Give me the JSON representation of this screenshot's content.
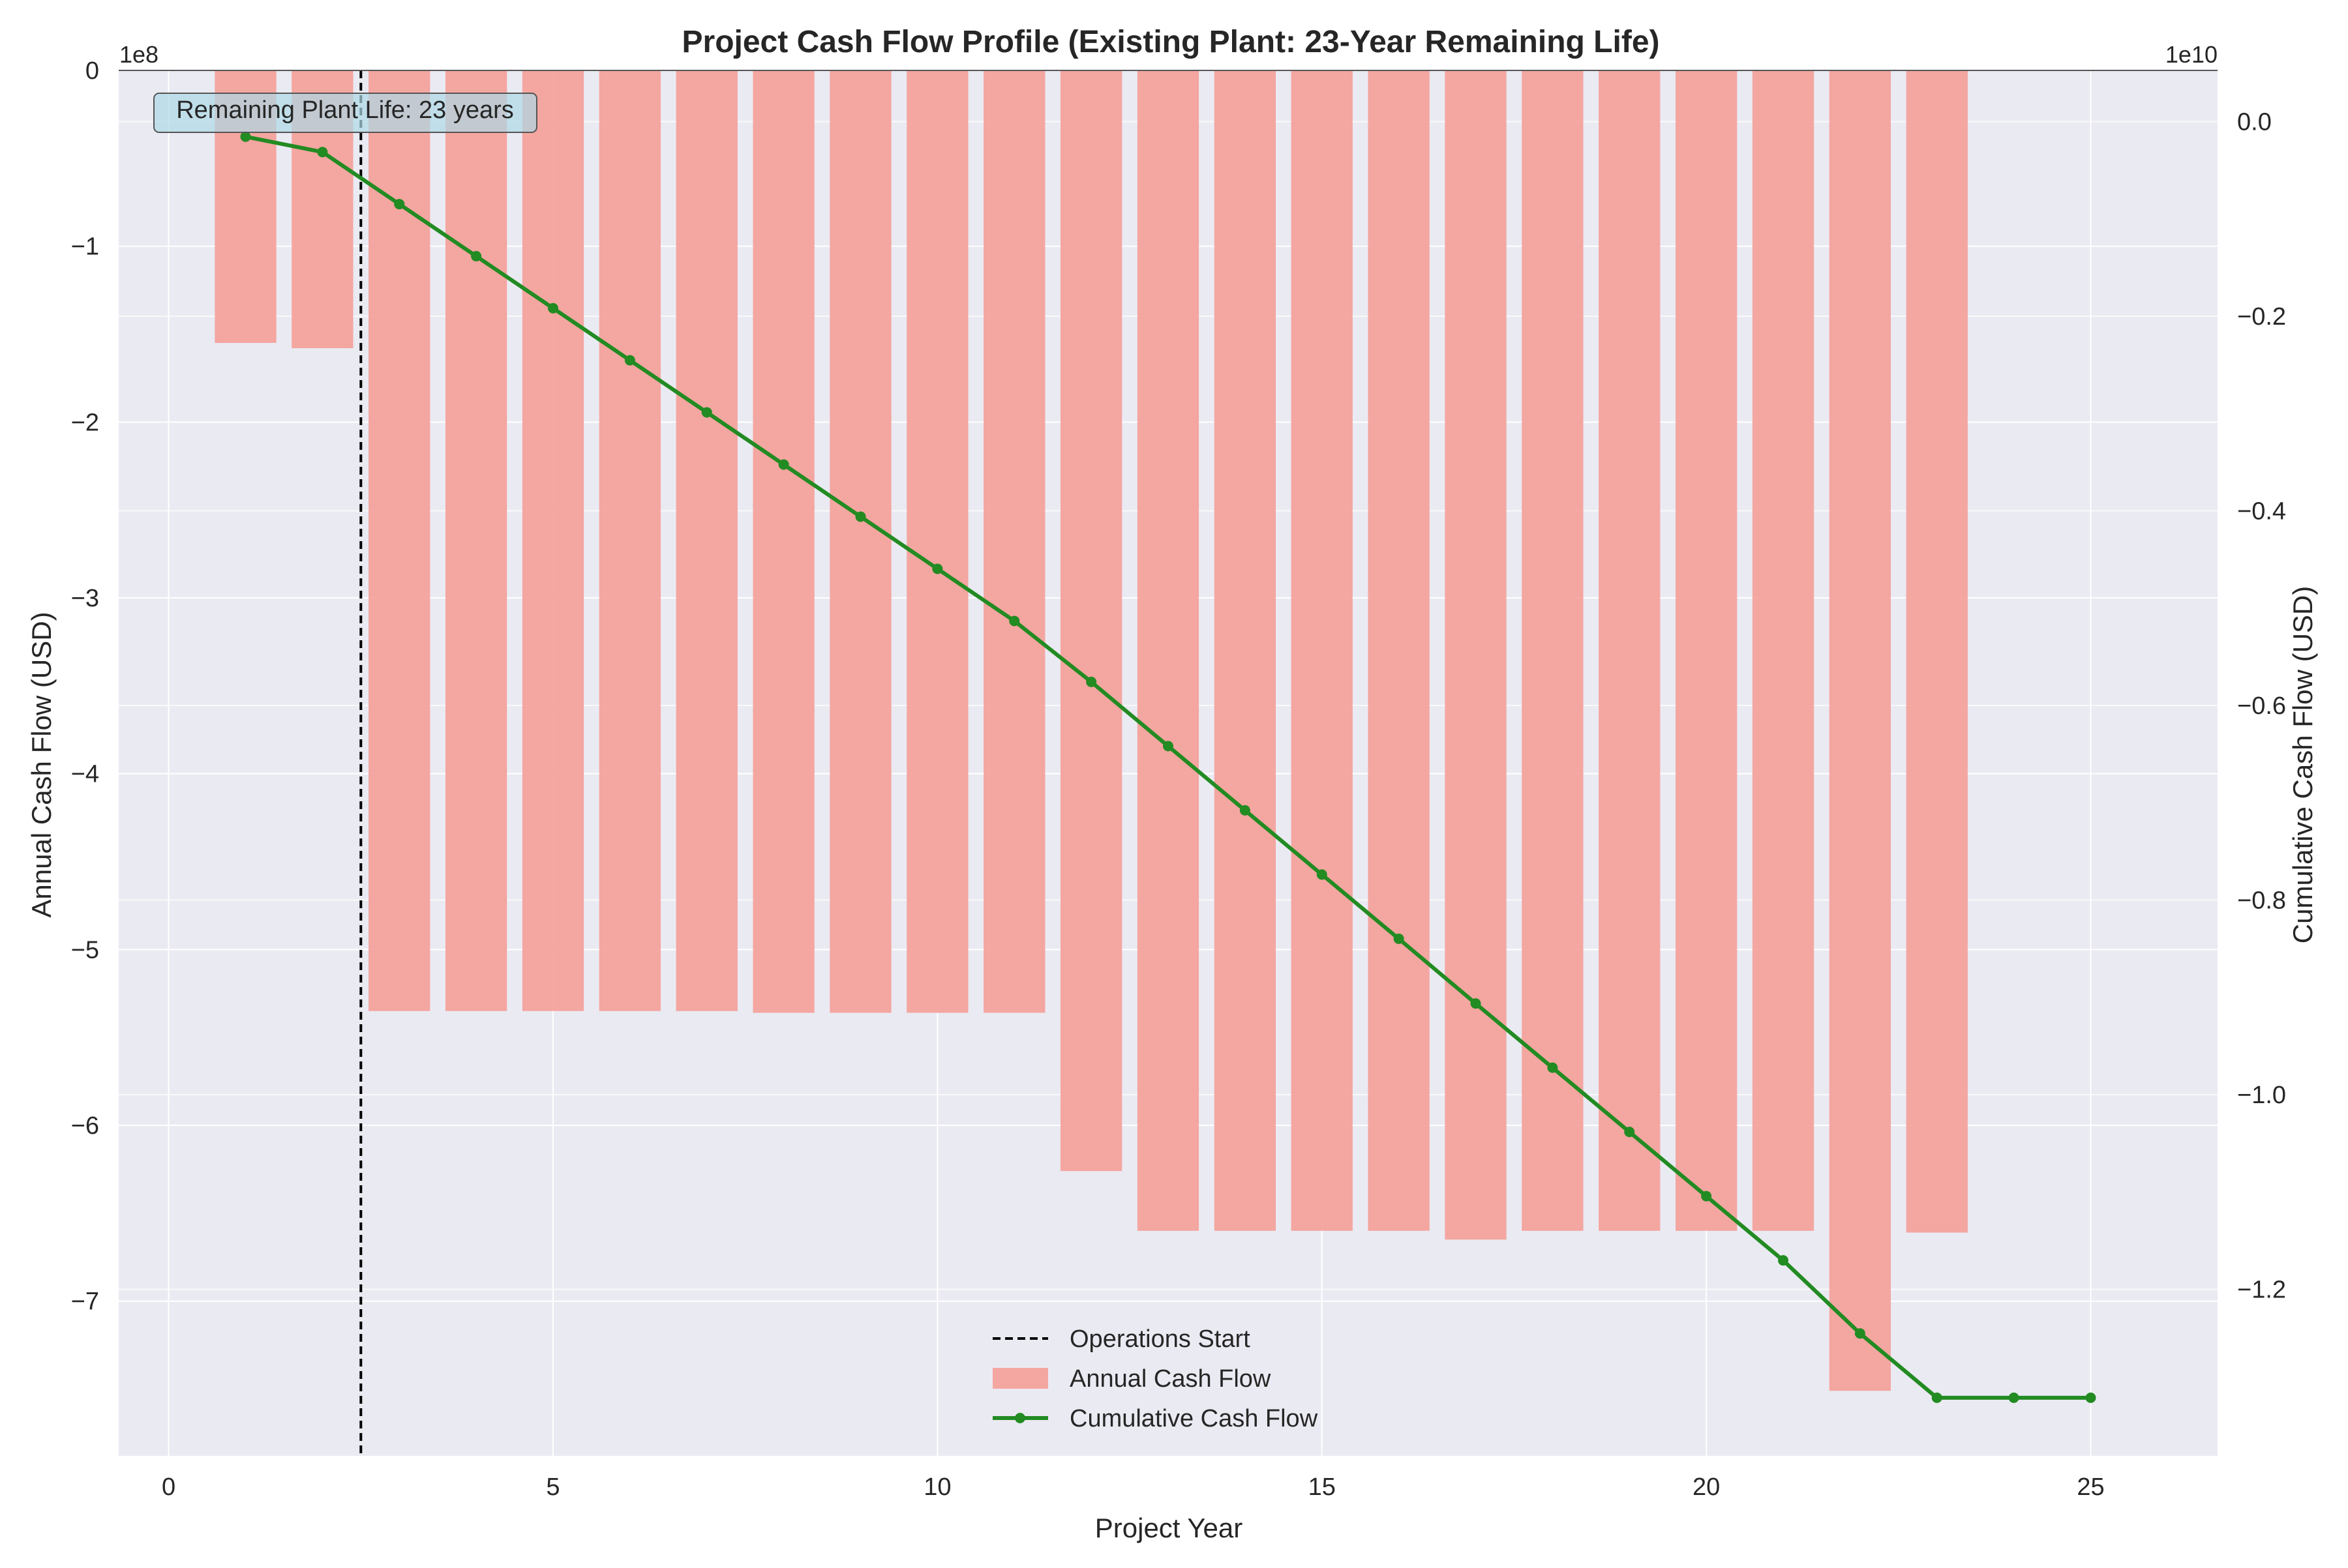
{
  "chart_data": {
    "type": "bar",
    "title": "Project Cash Flow Profile (Existing Plant: 23-Year Remaining Life)",
    "xlabel": "Project Year",
    "ylabel_left": "Annual Cash Flow (USD)",
    "ylabel_right": "Cumulative Cash Flow (USD)",
    "left_scale_label": "1e8",
    "right_scale_label": "1e10",
    "xlim": [
      -0.65,
      26.65
    ],
    "ylim_left": [
      -7.88,
      0
    ],
    "ylim_right": [
      -1.3712,
      0.0526
    ],
    "x_ticks": [
      0,
      5,
      10,
      15,
      20,
      25
    ],
    "x_tick_labels": [
      "0",
      "5",
      "10",
      "15",
      "20",
      "25"
    ],
    "left_ticks": [
      0,
      -1,
      -2,
      -3,
      -4,
      -5,
      -6,
      -7
    ],
    "left_tick_labels": [
      "0",
      "−1",
      "−2",
      "−3",
      "−4",
      "−5",
      "−6",
      "−7"
    ],
    "right_ticks": [
      0.0,
      -0.2,
      -0.4,
      -0.6,
      -0.8,
      -1.0,
      -1.2
    ],
    "right_tick_labels": [
      "0.0",
      "−0.2",
      "−0.4",
      "−0.6",
      "−0.8",
      "−1.0",
      "−1.2"
    ],
    "annual_cash_flow": {
      "name": "Annual Cash Flow",
      "unit_note": "values in units of 1e8 USD",
      "x": [
        1,
        2,
        3,
        4,
        5,
        6,
        7,
        8,
        9,
        10,
        11,
        12,
        13,
        14,
        15,
        16,
        17,
        18,
        19,
        20,
        21,
        22,
        23
      ],
      "values": [
        -1.55,
        -1.58,
        -5.35,
        -5.35,
        -5.35,
        -5.35,
        -5.35,
        -5.36,
        -5.36,
        -5.36,
        -5.36,
        -6.26,
        -6.6,
        -6.6,
        -6.6,
        -6.6,
        -6.65,
        -6.6,
        -6.6,
        -6.6,
        -6.6,
        -7.51,
        -6.61
      ],
      "color": "#f4a09a"
    },
    "cumulative_cash_flow": {
      "name": "Cumulative Cash Flow",
      "unit_note": "values in units of 1e10 USD",
      "x": [
        1,
        2,
        3,
        4,
        5,
        6,
        7,
        8,
        9,
        10,
        11,
        12,
        13,
        14,
        15,
        16,
        17,
        18,
        19,
        20,
        21,
        22,
        23,
        24,
        25
      ],
      "values": [
        -0.0155,
        -0.0313,
        -0.0848,
        -0.1383,
        -0.1918,
        -0.2453,
        -0.2988,
        -0.3524,
        -0.406,
        -0.4596,
        -0.5132,
        -0.5758,
        -0.6418,
        -0.7078,
        -0.7738,
        -0.8398,
        -0.9063,
        -0.9723,
        -1.0383,
        -1.1043,
        -1.1703,
        -1.2454,
        -1.3115,
        -1.3115,
        -1.3115
      ],
      "color": "#228b22"
    },
    "operations_start": {
      "name": "Operations Start",
      "x": 2.5,
      "color": "#000000"
    },
    "annotation": "Remaining Plant Life: 23 years",
    "legend_position": "lower-center",
    "legend_entries": [
      "Operations Start",
      "Annual Cash Flow",
      "Cumulative Cash Flow"
    ],
    "grid": true,
    "colors": {
      "plot_background": "#eaeaf2",
      "grid": "#ffffff",
      "annotation_box": "#add8e6"
    }
  }
}
